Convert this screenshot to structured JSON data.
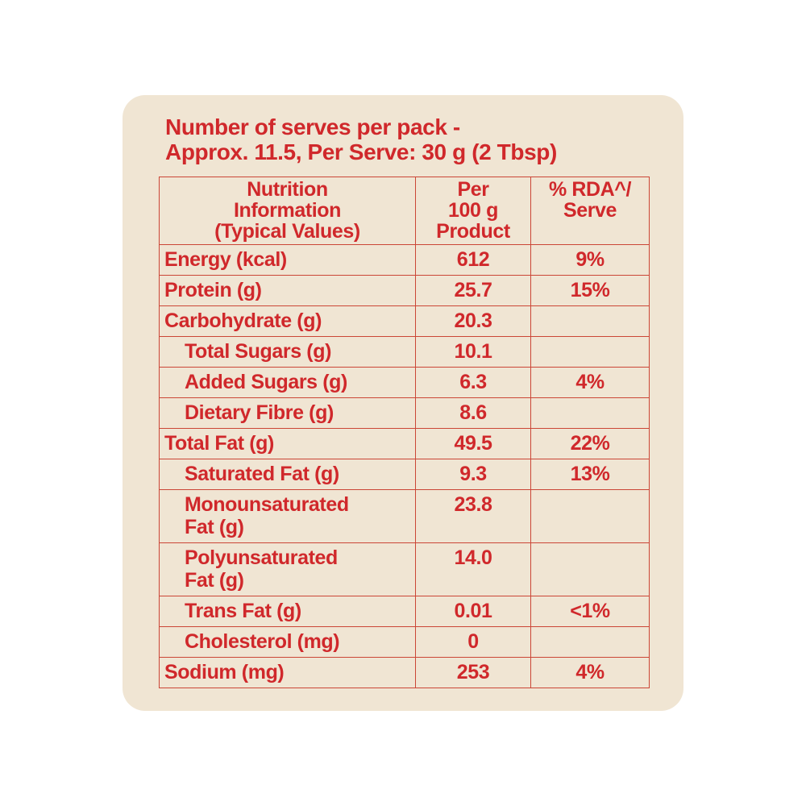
{
  "page": {
    "background_color": "#ffffff"
  },
  "card": {
    "background_color": "#f0e5d3",
    "text_color": "#d0282b",
    "border_color": "#cb4636"
  },
  "heading": {
    "line1": "Number of serves per pack -",
    "line2": "Approx. 11.5, Per Serve: 30 g (2 Tbsp)"
  },
  "table": {
    "columns": [
      {
        "label": "Nutrition\nInformation\n(Typical Values)"
      },
      {
        "label": "Per\n100 g\nProduct"
      },
      {
        "label": "% RDA^/\nServe"
      }
    ],
    "rows": [
      {
        "label": "Energy (kcal)",
        "per_100g": "612",
        "rda": "9%",
        "indent": false
      },
      {
        "label": "Protein (g)",
        "per_100g": "25.7",
        "rda": "15%",
        "indent": false
      },
      {
        "label": "Carbohydrate (g)",
        "per_100g": "20.3",
        "rda": "",
        "indent": false
      },
      {
        "label": "Total Sugars (g)",
        "per_100g": "10.1",
        "rda": "",
        "indent": true
      },
      {
        "label": "Added Sugars (g)",
        "per_100g": "6.3",
        "rda": "4%",
        "indent": true
      },
      {
        "label": "Dietary Fibre (g)",
        "per_100g": "8.6",
        "rda": "",
        "indent": true
      },
      {
        "label": "Total Fat (g)",
        "per_100g": "49.5",
        "rda": "22%",
        "indent": false
      },
      {
        "label": "Saturated Fat (g)",
        "per_100g": "9.3",
        "rda": "13%",
        "indent": true
      },
      {
        "label": "Monounsaturated\nFat (g)",
        "per_100g": "23.8",
        "rda": "",
        "indent": true
      },
      {
        "label": "Polyunsaturated\nFat (g)",
        "per_100g": "14.0",
        "rda": "",
        "indent": true
      },
      {
        "label": "Trans Fat (g)",
        "per_100g": "0.01",
        "rda": "<1%",
        "indent": true
      },
      {
        "label": "Cholesterol (mg)",
        "per_100g": "0",
        "rda": "",
        "indent": true
      },
      {
        "label": "Sodium (mg)",
        "per_100g": "253",
        "rda": "4%",
        "indent": false
      }
    ]
  }
}
